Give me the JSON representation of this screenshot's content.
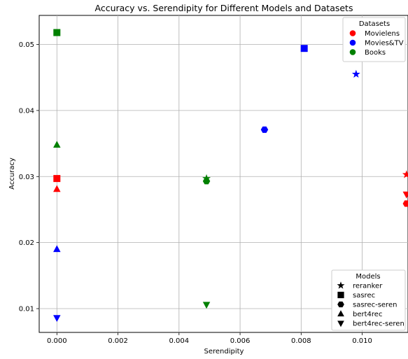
{
  "chart_data": {
    "type": "scatter",
    "title": "Accuracy vs. Serendipity for Different Models and Datasets",
    "xlabel": "Serendipity",
    "ylabel": "Accuracy",
    "xlim": [
      -0.00058,
      0.0115
    ],
    "ylim": [
      0.0064,
      0.0544
    ],
    "xticks": [
      0.0,
      0.002,
      0.004,
      0.006,
      0.008,
      0.01
    ],
    "xtick_labels": [
      "0.000",
      "0.002",
      "0.004",
      "0.006",
      "0.008",
      "0.010"
    ],
    "yticks": [
      0.01,
      0.02,
      0.03,
      0.04,
      0.05
    ],
    "ytick_labels": [
      "0.01",
      "0.02",
      "0.03",
      "0.04",
      "0.05"
    ],
    "grid": true,
    "datasets_legend": {
      "title": "Datasets",
      "placement": "top-right",
      "entries": [
        {
          "label": "Movielens",
          "color": "#ff0000"
        },
        {
          "label": "Movies&TV",
          "color": "#0000ff"
        },
        {
          "label": "Books",
          "color": "#008000"
        }
      ]
    },
    "models_legend": {
      "title": "Models",
      "placement": "bottom-right",
      "entries": [
        {
          "label": "reranker",
          "marker": "star"
        },
        {
          "label": "sasrec",
          "marker": "square"
        },
        {
          "label": "sasrec-seren",
          "marker": "hexagon"
        },
        {
          "label": "bert4rec",
          "marker": "triangle-up"
        },
        {
          "label": "bert4rec-seren",
          "marker": "triangle-down"
        }
      ]
    },
    "series": [
      {
        "dataset": "Movielens",
        "model": "reranker",
        "x": 0.01145,
        "y": 0.0303
      },
      {
        "dataset": "Movielens",
        "model": "sasrec",
        "x": 0.0,
        "y": 0.0297
      },
      {
        "dataset": "Movielens",
        "model": "sasrec-seren",
        "x": 0.01145,
        "y": 0.0259
      },
      {
        "dataset": "Movielens",
        "model": "bert4rec",
        "x": 0.0,
        "y": 0.0281
      },
      {
        "dataset": "Movielens",
        "model": "bert4rec-seren",
        "x": 0.01145,
        "y": 0.0273
      },
      {
        "dataset": "Movies&TV",
        "model": "reranker",
        "x": 0.0098,
        "y": 0.0455
      },
      {
        "dataset": "Movies&TV",
        "model": "sasrec",
        "x": 0.0081,
        "y": 0.0494
      },
      {
        "dataset": "Movies&TV",
        "model": "sasrec-seren",
        "x": 0.0068,
        "y": 0.0371
      },
      {
        "dataset": "Movies&TV",
        "model": "bert4rec",
        "x": 0.0,
        "y": 0.019
      },
      {
        "dataset": "Movies&TV",
        "model": "bert4rec-seren",
        "x": 0.0,
        "y": 0.0086
      },
      {
        "dataset": "Books",
        "model": "reranker",
        "x": 0.0049,
        "y": 0.0297
      },
      {
        "dataset": "Books",
        "model": "sasrec",
        "x": 0.0,
        "y": 0.0518
      },
      {
        "dataset": "Books",
        "model": "sasrec-seren",
        "x": 0.0049,
        "y": 0.0293
      },
      {
        "dataset": "Books",
        "model": "bert4rec",
        "x": 0.0,
        "y": 0.0348
      },
      {
        "dataset": "Books",
        "model": "bert4rec-seren",
        "x": 0.0049,
        "y": 0.0106
      }
    ]
  }
}
